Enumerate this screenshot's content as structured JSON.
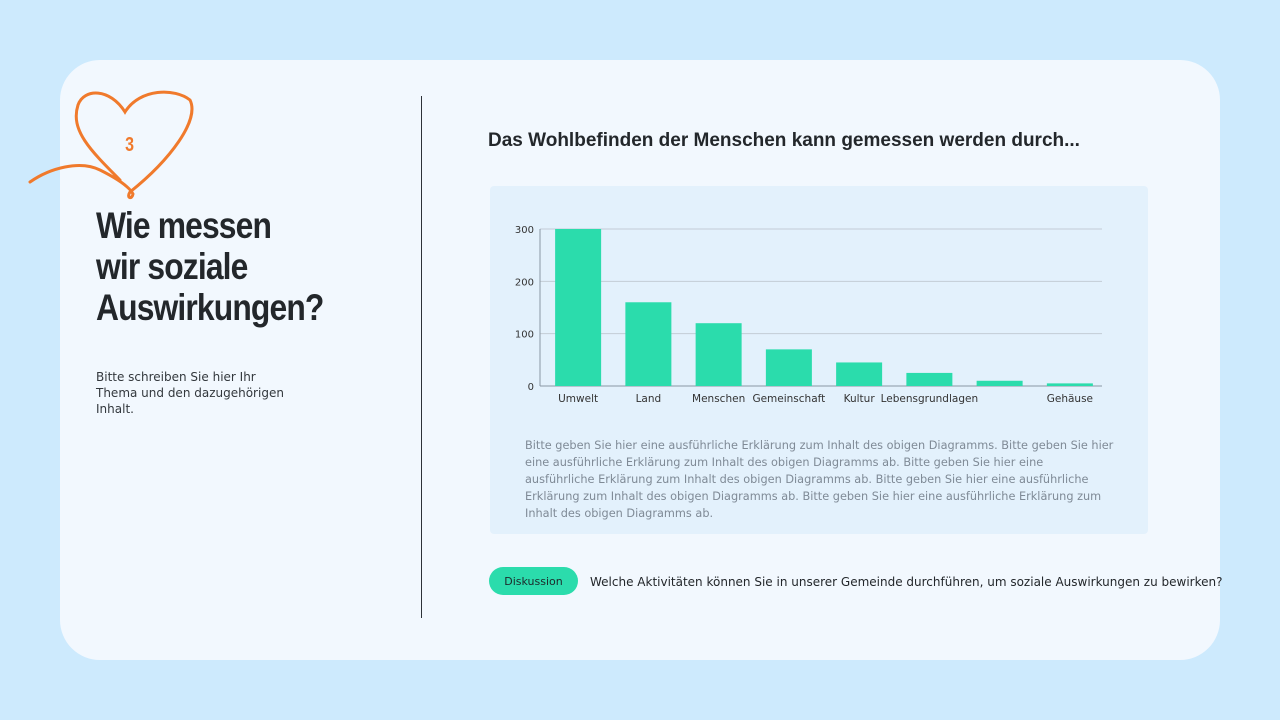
{
  "slide": {
    "number": "3",
    "title": "Wie messen wir soziale Auswirkungen?",
    "subtitle": "Bitte schreiben Sie hier Ihr Thema und den dazugehörigen Inhalt.",
    "accent_color": "#f07a2c",
    "chart_heading": "Das Wohlbefinden der Menschen kann gemessen werden durch...",
    "explanation": "Bitte geben Sie hier eine ausführliche Erklärung zum Inhalt des obigen Diagramms. Bitte geben Sie hier eine ausführliche Erklärung zum Inhalt des obigen Diagramms ab. Bitte geben Sie hier eine ausführliche Erklärung zum Inhalt des obigen Diagramms ab. Bitte geben Sie hier eine ausführliche Erklärung zum Inhalt des obigen Diagramms ab. Bitte geben Sie hier eine ausführliche Erklärung zum Inhalt des obigen Diagramms ab.",
    "badge": "Diskussion",
    "question": "Welche Aktivitäten können Sie in unserer Gemeinde durchführen, um soziale Auswirkungen zu bewirken?"
  },
  "chart_data": {
    "type": "bar",
    "categories": [
      "Umwelt",
      "Land",
      "Menschen",
      "Gemeinschaft",
      "Kultur",
      "Lebensgrundlagen",
      "",
      "Gehäuse"
    ],
    "values": [
      300,
      160,
      120,
      70,
      45,
      25,
      10,
      5
    ],
    "yticks": [
      "0",
      "100",
      "200",
      "300"
    ],
    "ylim": [
      0,
      300
    ],
    "grid": true,
    "bar_color": "#2bdcac"
  }
}
